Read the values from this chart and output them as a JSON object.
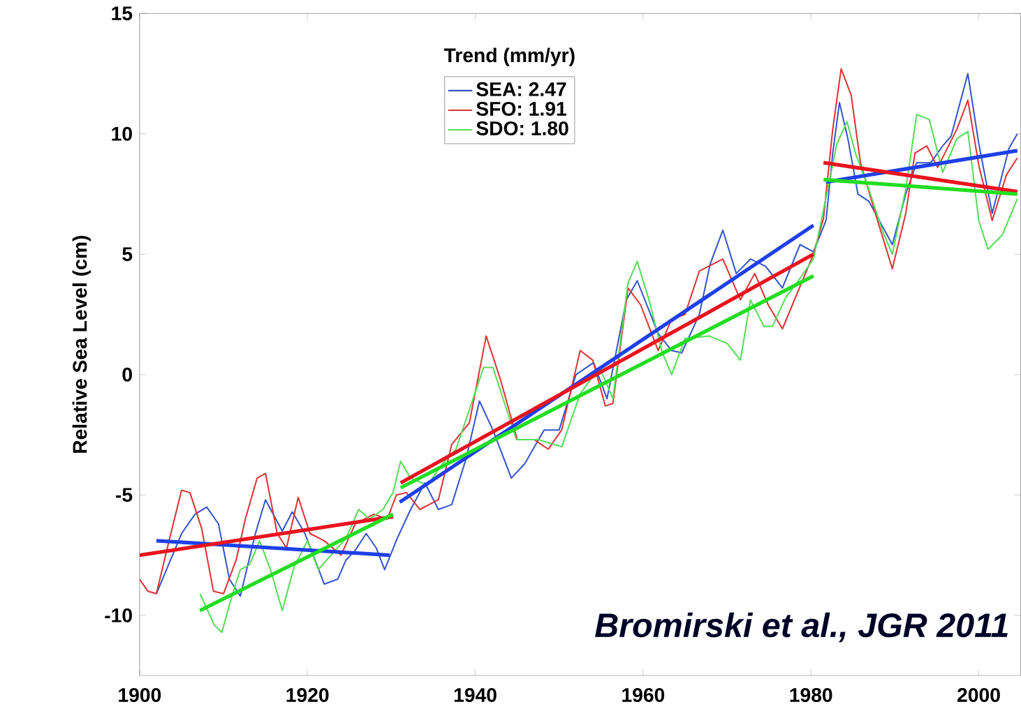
{
  "chart_data": {
    "type": "line",
    "ylabel": "Relative Sea Level (cm)",
    "legend_title": "Trend  (mm/yr)",
    "legend": "top",
    "grid": false,
    "marker": "none",
    "line_style": "solid",
    "xlim": [
      1900,
      2005
    ],
    "xticks": [
      1900,
      1920,
      1940,
      1960,
      1980,
      2000
    ],
    "ylim": [
      -12.5,
      15
    ],
    "yticks": [
      -10,
      -5,
      0,
      5,
      10,
      15
    ],
    "annotations": [
      "Bromirski et al., JGR 2011"
    ],
    "series": [
      {
        "name": "SEA:   2.47",
        "color": "#3355cc",
        "x": [
          1902,
          1905,
          1906.6,
          1908,
          1909.4,
          1910.7,
          1912,
          1913.8,
          1915,
          1917,
          1918.2,
          1919.7,
          1922,
          1923.6,
          1924.6,
          1925.7,
          1927,
          1928.2,
          1929.2,
          1930.7,
          1932.3,
          1934,
          1935.6,
          1937.2,
          1938.9,
          1940.5,
          1942.1,
          1944.3,
          1945.9,
          1948.2,
          1950,
          1952,
          1954.1,
          1955.7,
          1958,
          1959.3,
          1961.8,
          1963.4,
          1964.6,
          1966.7,
          1968,
          1969.5,
          1971.1,
          1972.8,
          1974.6,
          1976.6,
          1978.7,
          1980.3,
          1981.8,
          1982.6,
          1983.4,
          1984.4,
          1985.6,
          1986.9,
          1989.7,
          1991.3,
          1992.6,
          1994.3,
          1995.7,
          1996.7,
          1998.7,
          2000,
          2001.6,
          2003.6,
          2004.6
        ],
        "values": [
          -9.1,
          -6.6,
          -5.8,
          -5.5,
          -6.2,
          -8.5,
          -9.2,
          -6.6,
          -5.2,
          -6.5,
          -5.7,
          -6.6,
          -8.7,
          -8.5,
          -7.7,
          -7.3,
          -6.6,
          -7.2,
          -8.1,
          -6.8,
          -5.6,
          -4.5,
          -5.6,
          -5.4,
          -3.5,
          -1.1,
          -2.3,
          -4.3,
          -3.7,
          -2.3,
          -2.3,
          0.0,
          0.5,
          -1.0,
          3.1,
          3.9,
          1.7,
          1.0,
          0.9,
          2.5,
          4.6,
          6.0,
          4.2,
          4.8,
          4.5,
          3.6,
          5.4,
          5.1,
          6.4,
          9.2,
          11.3,
          9.8,
          7.5,
          7.2,
          5.4,
          7.5,
          8.8,
          8.8,
          9.5,
          9.9,
          12.5,
          9.6,
          6.7,
          9.4,
          10.0
        ]
      },
      {
        "name": "SFO:   1.91",
        "color": "#dd3333",
        "x": [
          1900,
          1901,
          1902,
          1903.3,
          1905,
          1906,
          1907.4,
          1908.8,
          1910,
          1911.5,
          1912.6,
          1914,
          1915,
          1916.4,
          1917.5,
          1918.9,
          1920.3,
          1922,
          1924,
          1925.7,
          1927.9,
          1929.5,
          1930.6,
          1931.8,
          1933.4,
          1935.6,
          1937.2,
          1939.3,
          1941.3,
          1943,
          1945,
          1947,
          1948.7,
          1950.3,
          1952.5,
          1954,
          1955.5,
          1956.4,
          1958.2,
          1959.7,
          1961.8,
          1963.4,
          1965,
          1966.7,
          1969.5,
          1971.6,
          1973.3,
          1974.9,
          1976.6,
          1980.3,
          1981.5,
          1982.6,
          1983.6,
          1984.8,
          1985.9,
          1987.5,
          1989.7,
          1991.3,
          1992.4,
          1993.8,
          1995.1,
          1997.4,
          1998.7,
          2000,
          2001.6,
          2003.3,
          2004.6
        ],
        "values": [
          -8.5,
          -9.0,
          -9.1,
          -7.2,
          -4.8,
          -4.9,
          -6.4,
          -9.0,
          -9.1,
          -7.7,
          -6.0,
          -4.3,
          -4.1,
          -6.6,
          -7.2,
          -5.1,
          -6.6,
          -6.9,
          -7.5,
          -6.2,
          -5.8,
          -6.0,
          -5.0,
          -4.9,
          -5.6,
          -5.2,
          -2.9,
          -2.0,
          1.6,
          -0.2,
          -2.7,
          -2.7,
          -3.1,
          -2.3,
          1.0,
          0.6,
          -1.3,
          -1.2,
          3.6,
          2.9,
          1.0,
          2.3,
          2.5,
          4.3,
          4.8,
          3.1,
          4.2,
          2.9,
          1.9,
          5.0,
          6.5,
          10.2,
          12.7,
          11.6,
          8.8,
          6.9,
          4.4,
          6.7,
          9.2,
          9.5,
          8.6,
          10.2,
          11.4,
          8.7,
          6.4,
          8.3,
          9.0
        ]
      },
      {
        "name": "SDO:   1.80",
        "color": "#55dd55",
        "x": [
          1907.2,
          1908.9,
          1909.8,
          1911,
          1912,
          1913.1,
          1914.3,
          1915.6,
          1917,
          1918.4,
          1920,
          1921.3,
          1922.8,
          1924.6,
          1926.1,
          1927.4,
          1929,
          1930.2,
          1931.1,
          1932.3,
          1934.3,
          1936.1,
          1937.7,
          1941,
          1942.1,
          1944.9,
          1947.5,
          1950.3,
          1952.5,
          1954.8,
          1956.4,
          1958.2,
          1959.3,
          1960.7,
          1962.3,
          1963.4,
          1965,
          1967.9,
          1970,
          1971.6,
          1972.8,
          1974.4,
          1975.4,
          1977,
          1978.7,
          1980.3,
          1982,
          1983.1,
          1984.3,
          1985.3,
          1986.9,
          1988.5,
          1989.7,
          1991.3,
          1992.6,
          1994.1,
          1995.7,
          1997.4,
          1998.7,
          2000,
          2001.1,
          2002.8,
          2004.6
        ],
        "values": [
          -9.1,
          -10.4,
          -10.7,
          -9.2,
          -8.1,
          -7.9,
          -6.9,
          -8.1,
          -9.8,
          -8.0,
          -6.9,
          -8.1,
          -7.5,
          -6.8,
          -5.6,
          -6.0,
          -5.6,
          -4.9,
          -3.6,
          -4.3,
          -4.6,
          -3.7,
          -3.1,
          0.3,
          0.3,
          -2.7,
          -2.7,
          -3.0,
          -0.8,
          0.3,
          -1.0,
          3.8,
          4.7,
          3.1,
          0.9,
          0.0,
          1.5,
          1.6,
          1.3,
          0.6,
          3.1,
          2.0,
          2.0,
          3.2,
          4.0,
          4.8,
          7.7,
          9.6,
          10.5,
          9.2,
          7.7,
          6.0,
          5.0,
          7.7,
          10.8,
          10.6,
          8.4,
          9.8,
          10.1,
          6.4,
          5.2,
          5.8,
          7.3
        ]
      },
      {
        "color": "#1f3fe8",
        "x": [
          1902,
          1929.8
        ],
        "values": [
          -6.9,
          -7.5
        ]
      },
      {
        "color": "#1f3fe8",
        "x": [
          1931,
          1980.3
        ],
        "values": [
          -5.3,
          6.2
        ]
      },
      {
        "color": "#1f3fe8",
        "x": [
          1981.8,
          2004.6
        ],
        "values": [
          8.0,
          9.3
        ]
      },
      {
        "color": "#e8141e",
        "x": [
          1900,
          1930.2
        ],
        "values": [
          -7.5,
          -5.9
        ]
      },
      {
        "color": "#e8141e",
        "x": [
          1931.1,
          1980.3
        ],
        "values": [
          -4.5,
          5.0
        ]
      },
      {
        "color": "#e8141e",
        "x": [
          1981.5,
          2004.6
        ],
        "values": [
          8.8,
          7.6
        ]
      },
      {
        "color": "#22dd22",
        "x": [
          1907.2,
          1930.2
        ],
        "values": [
          -9.8,
          -5.8
        ]
      },
      {
        "color": "#22dd22",
        "x": [
          1931.1,
          1980.3
        ],
        "values": [
          -4.7,
          4.1
        ]
      },
      {
        "color": "#22dd22",
        "x": [
          1981.5,
          2004.6
        ],
        "values": [
          8.1,
          7.5
        ]
      }
    ]
  }
}
